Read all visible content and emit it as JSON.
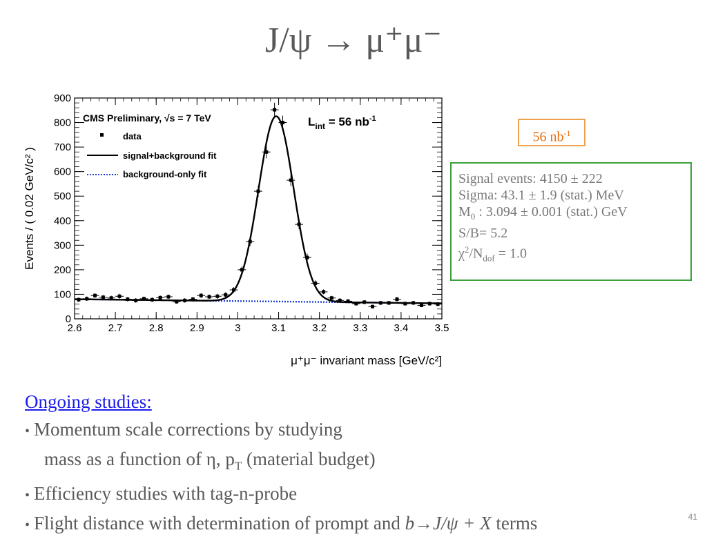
{
  "slide": {
    "title": "J/ψ → μ⁺μ⁻",
    "page_number": "41"
  },
  "lumi_box": {
    "text": "56 nb",
    "sup": "-1"
  },
  "results": {
    "signal": "Signal events: 4150 ± 222",
    "sigma": "Sigma: 43.1 ± 1.9 (stat.) MeV",
    "m0_main": "M",
    "m0_sub": "0",
    "m0_rest": " : 3.094 ± 0.001 (stat.) GeV",
    "sb": "S/B= 5.2",
    "chi_main": "χ",
    "chi_sup": "2",
    "chi_mid": "/N",
    "chi_sub": "dof",
    "chi_rest": " = 1.0"
  },
  "studies": {
    "heading": "Ongoing studies:",
    "items": [
      "Momentum scale corrections by studying",
      "mass as a function of η, p",
      "(material budget)",
      "Efficiency studies with tag-n-probe",
      "Flight distance with determination of prompt and ",
      "b→J/ψ + X",
      " terms"
    ],
    "pt_sub": "T"
  },
  "chart_data": {
    "type": "scatter",
    "title": "",
    "xlabel": "μ⁺μ⁻ invariant mass [GeV/c²]",
    "ylabel": "Events / ( 0.02 GeV/c² )",
    "xlim": [
      2.6,
      3.5
    ],
    "ylim": [
      0,
      900
    ],
    "xticks": [
      "2.6",
      "2.7",
      "2.8",
      "2.9",
      "3",
      "3.1",
      "3.2",
      "3.3",
      "3.4",
      "3.5"
    ],
    "yticks": [
      "0",
      "100",
      "200",
      "300",
      "400",
      "500",
      "600",
      "700",
      "800",
      "900"
    ],
    "grid": false,
    "legend_position": "top-left",
    "annotations": {
      "cms_label": "CMS Preliminary, √s = 7 TeV",
      "lumi_label_main": "L",
      "lumi_label_sub": "int",
      "lumi_label_value": " = 56 nb",
      "lumi_label_sup": "-1"
    },
    "series": [
      {
        "name": "data",
        "style": "points-with-errors",
        "color": "#000000",
        "x": [
          2.61,
          2.63,
          2.65,
          2.67,
          2.69,
          2.71,
          2.73,
          2.75,
          2.77,
          2.79,
          2.81,
          2.83,
          2.85,
          2.87,
          2.89,
          2.91,
          2.93,
          2.95,
          2.97,
          2.99,
          3.01,
          3.03,
          3.05,
          3.07,
          3.09,
          3.11,
          3.13,
          3.15,
          3.17,
          3.19,
          3.21,
          3.23,
          3.25,
          3.27,
          3.29,
          3.31,
          3.33,
          3.35,
          3.37,
          3.39,
          3.41,
          3.43,
          3.45,
          3.47,
          3.49
        ],
        "y": [
          78,
          82,
          95,
          88,
          85,
          92,
          80,
          75,
          82,
          78,
          86,
          90,
          70,
          75,
          80,
          95,
          90,
          92,
          98,
          118,
          200,
          315,
          520,
          680,
          852,
          800,
          565,
          385,
          250,
          145,
          110,
          85,
          75,
          72,
          62,
          68,
          50,
          65,
          65,
          80,
          62,
          65,
          55,
          62,
          60
        ],
        "yerr": [
          9,
          9,
          10,
          9,
          9,
          10,
          9,
          9,
          9,
          9,
          9,
          9,
          8,
          9,
          9,
          10,
          9,
          10,
          10,
          11,
          14,
          18,
          23,
          26,
          29,
          28,
          24,
          20,
          16,
          12,
          10,
          9,
          9,
          8,
          8,
          8,
          7,
          8,
          8,
          9,
          8,
          8,
          7,
          8,
          8
        ]
      },
      {
        "name": "signal+background fit",
        "style": "solid-line",
        "color": "#000000",
        "model": {
          "peak_mass": 3.094,
          "sigma": 0.0431,
          "peak_height": 755,
          "background_start": 80,
          "background_end": 63
        }
      },
      {
        "name": "background-only fit",
        "style": "dotted-line",
        "color": "#1f3fd6",
        "model": {
          "background_start": 80,
          "background_end": 63
        }
      }
    ]
  }
}
